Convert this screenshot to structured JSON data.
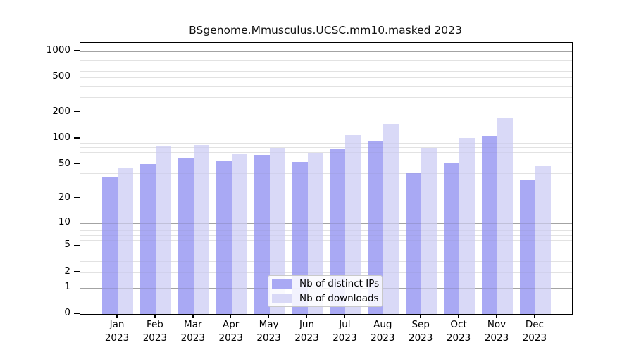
{
  "title": "BSgenome.Mmusculus.UCSC.mm10.masked 2023",
  "chart_data": {
    "type": "bar",
    "title": "BSgenome.Mmusculus.UCSC.mm10.masked 2023",
    "categories": [
      "Jan",
      "Feb",
      "Mar",
      "Apr",
      "May",
      "Jun",
      "Jul",
      "Aug",
      "Sep",
      "Oct",
      "Nov",
      "Dec"
    ],
    "year": "2023",
    "series": [
      {
        "name": "Nb of distinct IPs",
        "color": "#a9a9f4",
        "values": [
          36,
          51,
          60,
          56,
          65,
          54,
          77,
          95,
          40,
          53,
          108,
          33
        ]
      },
      {
        "name": "Nb of downloads",
        "color": "#d9d9f7",
        "values": [
          45,
          83,
          84,
          66,
          78,
          68,
          110,
          147,
          78,
          102,
          172,
          48
        ]
      }
    ],
    "xlabel": "",
    "ylabel": "",
    "y_scale": "log10(1+x)",
    "y_ticks": [
      0,
      1,
      2,
      5,
      10,
      20,
      50,
      100,
      200,
      500,
      1000
    ],
    "ylim": [
      0,
      1250
    ],
    "grid": true,
    "legend_position": "bottom-center-inside"
  },
  "colors": {
    "spine": "#000000",
    "grid_minor": "#ebebeb",
    "grid_decade": "#b5b5b5",
    "background": "#ffffff"
  }
}
